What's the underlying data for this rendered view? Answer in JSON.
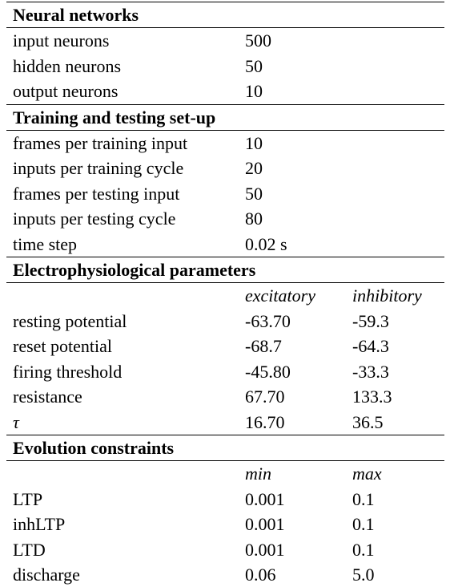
{
  "sections": [
    {
      "title": "Neural networks",
      "rows": [
        {
          "label": "input neurons",
          "value": "500"
        },
        {
          "label": "hidden neurons",
          "value": "50"
        },
        {
          "label": "output neurons",
          "value": "10"
        }
      ]
    },
    {
      "title": "Training and testing set-up",
      "rows": [
        {
          "label": "frames per training input",
          "value": "10"
        },
        {
          "label": "inputs per training cycle",
          "value": "20"
        },
        {
          "label": "frames per testing input",
          "value": "50"
        },
        {
          "label": "inputs per testing cycle",
          "value": "80"
        },
        {
          "label": "time step",
          "value": "0.02 s"
        }
      ]
    },
    {
      "title": "Electrophysiological parameters",
      "columns": [
        "excitatory",
        "inhibitory"
      ],
      "rows": [
        {
          "label": "resting potential",
          "excitatory": "-63.70",
          "inhibitory": "-59.3"
        },
        {
          "label": "reset potential",
          "excitatory": "-68.7",
          "inhibitory": "-64.3"
        },
        {
          "label": "firing threshold",
          "excitatory": "-45.80",
          "inhibitory": "-33.3"
        },
        {
          "label": "resistance",
          "excitatory": "67.70",
          "inhibitory": "133.3"
        },
        {
          "label": "τ",
          "excitatory": "16.70",
          "inhibitory": "36.5"
        }
      ]
    },
    {
      "title": "Evolution constraints",
      "columns": [
        "min",
        "max"
      ],
      "rows": [
        {
          "label": "LTP",
          "min": "0.001",
          "max": "0.1"
        },
        {
          "label": "inhLTP",
          "min": "0.001",
          "max": "0.1"
        },
        {
          "label": "LTD",
          "min": "0.001",
          "max": "0.1"
        },
        {
          "label": "discharge",
          "min": "0.06",
          "max": "5.0"
        }
      ]
    }
  ]
}
